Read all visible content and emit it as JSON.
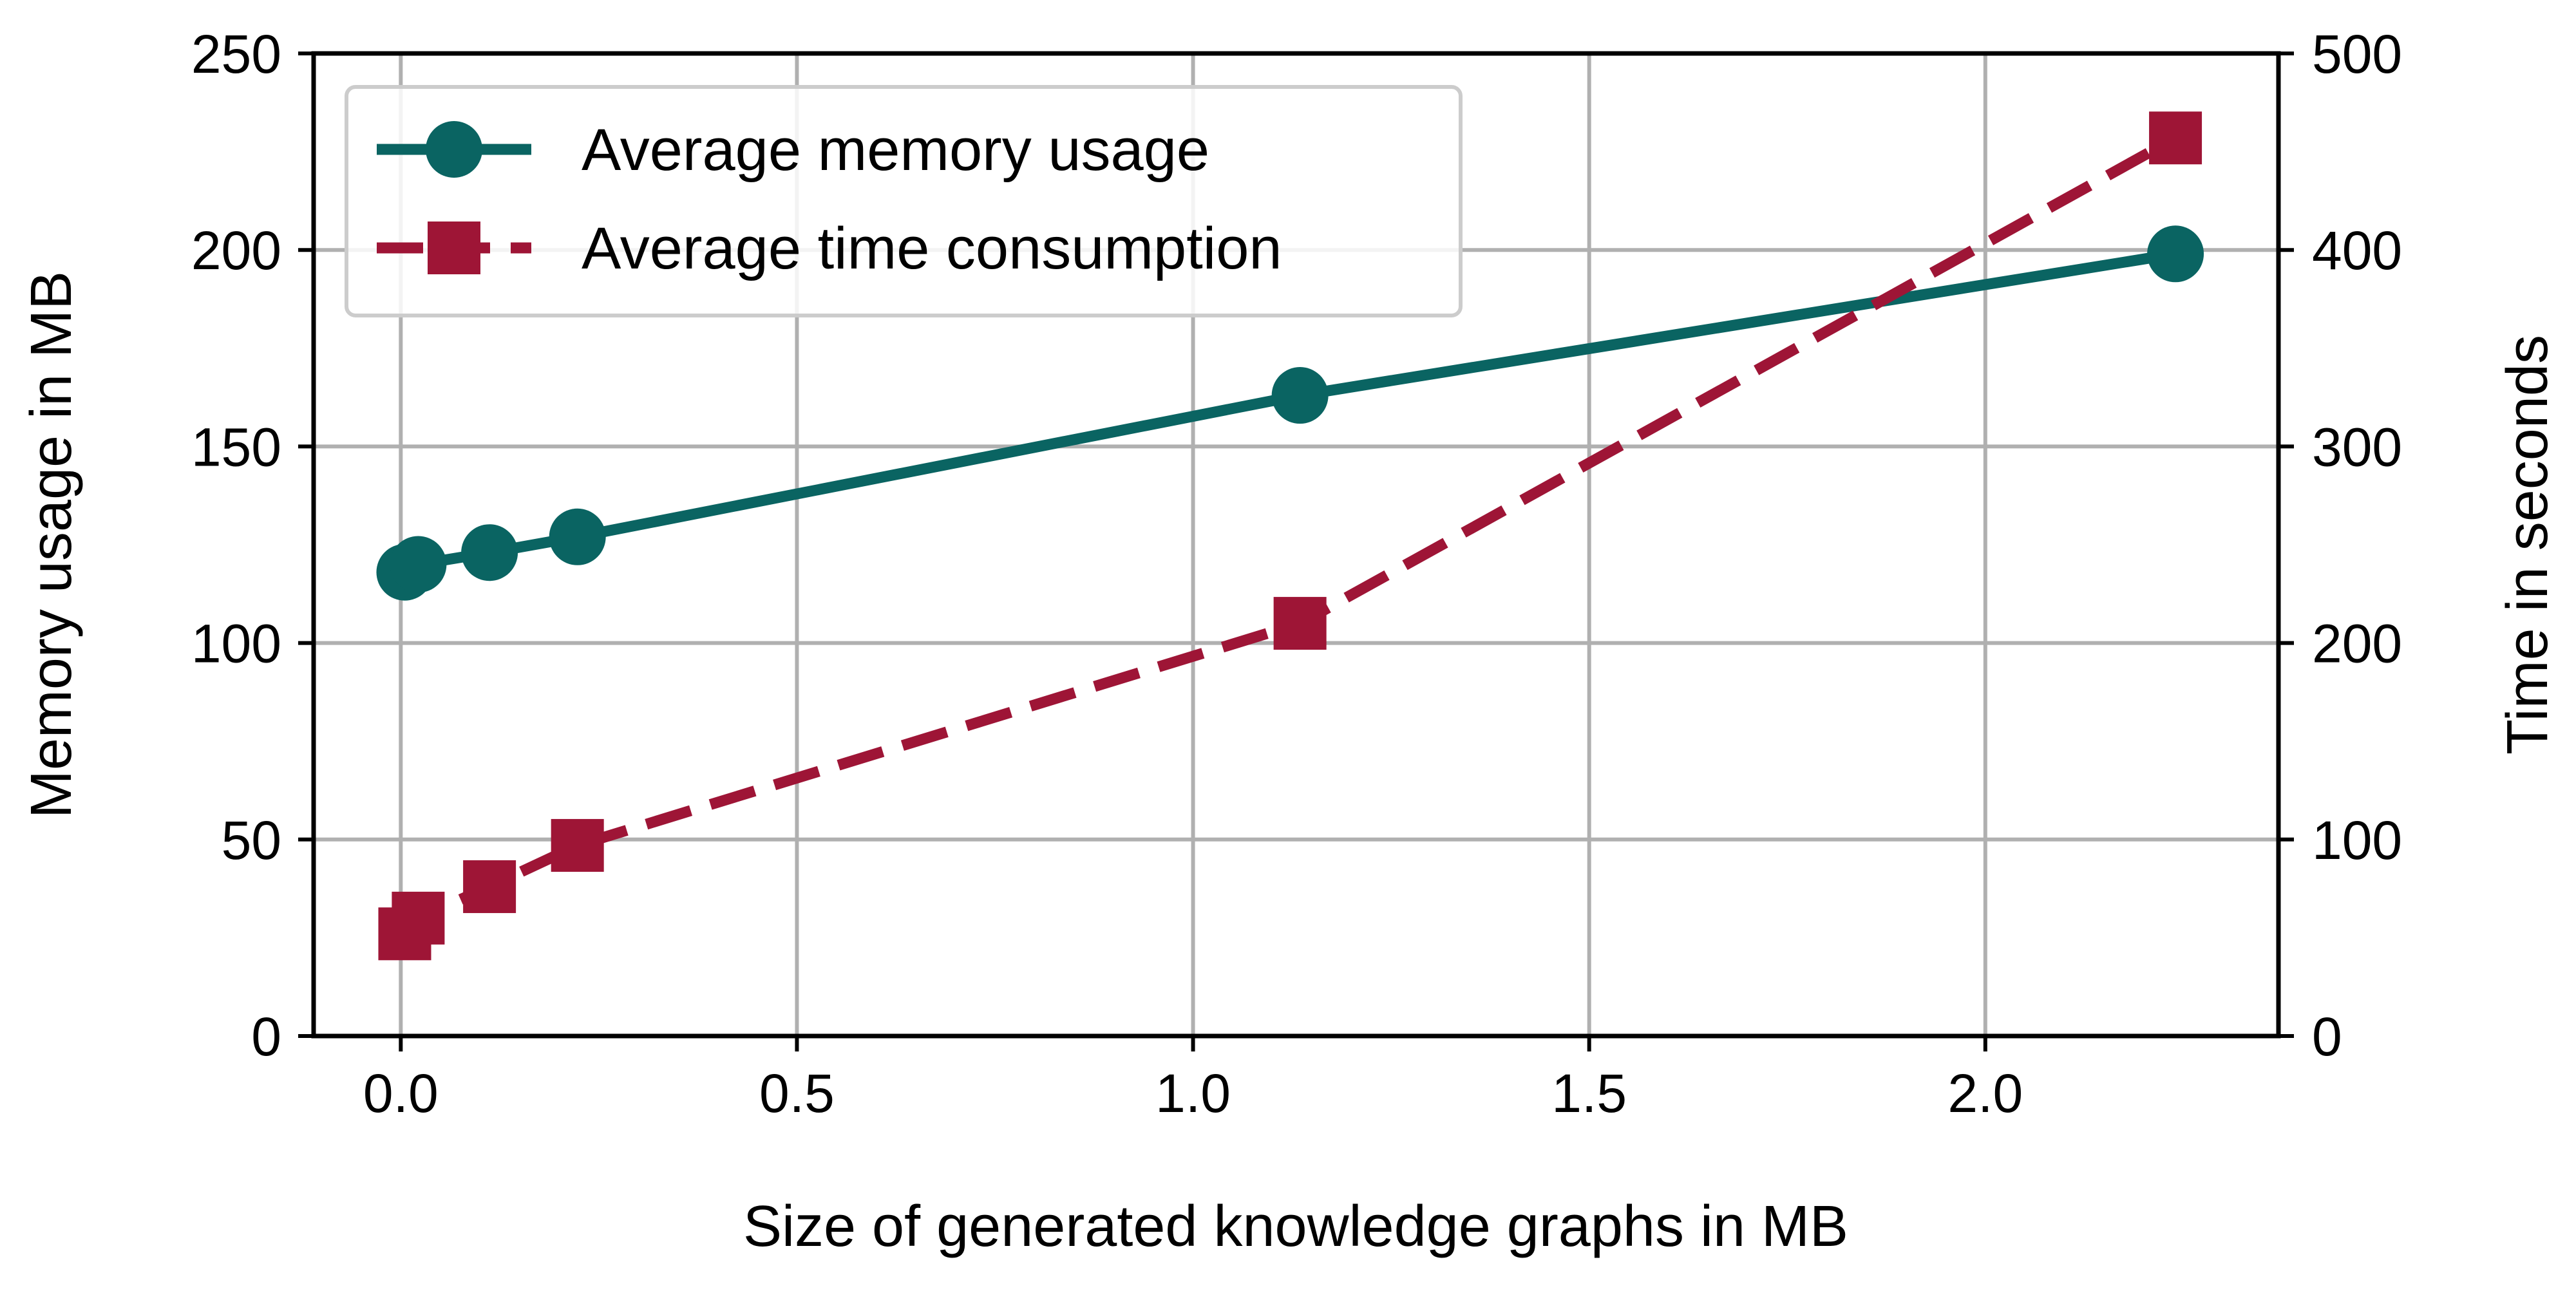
{
  "chart_data": {
    "type": "line",
    "xlabel": "Size of generated knowledge graphs in MB",
    "ylabel_left": "Memory usage in MB",
    "ylabel_right": "Time in seconds",
    "xlim": [
      -0.11,
      2.37
    ],
    "ylim_left": [
      0,
      250
    ],
    "ylim_right": [
      0,
      500
    ],
    "x_ticks": [
      0.0,
      0.5,
      1.0,
      1.5,
      2.0
    ],
    "x_tick_labels": [
      "0.0",
      "0.5",
      "1.0",
      "1.5",
      "2.0"
    ],
    "y_left_ticks": [
      0,
      50,
      100,
      150,
      200,
      250
    ],
    "y_left_tick_labels": [
      "0",
      "50",
      "100",
      "150",
      "200",
      "250"
    ],
    "y_right_ticks": [
      0,
      100,
      200,
      300,
      400,
      500
    ],
    "y_right_tick_labels": [
      "0",
      "100",
      "200",
      "300",
      "400",
      "500"
    ],
    "grid": true,
    "legend_position": "top-left",
    "series": [
      {
        "name": "Average memory usage",
        "axis": "left",
        "marker": "circle",
        "line_style": "solid",
        "color": "#0a6462",
        "x": [
          0.005,
          0.022,
          0.112,
          0.223,
          1.135,
          2.24
        ],
        "y": [
          118,
          120,
          123,
          127,
          163,
          199
        ]
      },
      {
        "name": "Average time consumption",
        "axis": "right",
        "marker": "square",
        "line_style": "dashed",
        "color": "#9e1536",
        "x": [
          0.005,
          0.022,
          0.112,
          0.223,
          1.135,
          2.24
        ],
        "y": [
          52,
          60,
          76,
          97,
          210,
          457
        ]
      }
    ]
  }
}
